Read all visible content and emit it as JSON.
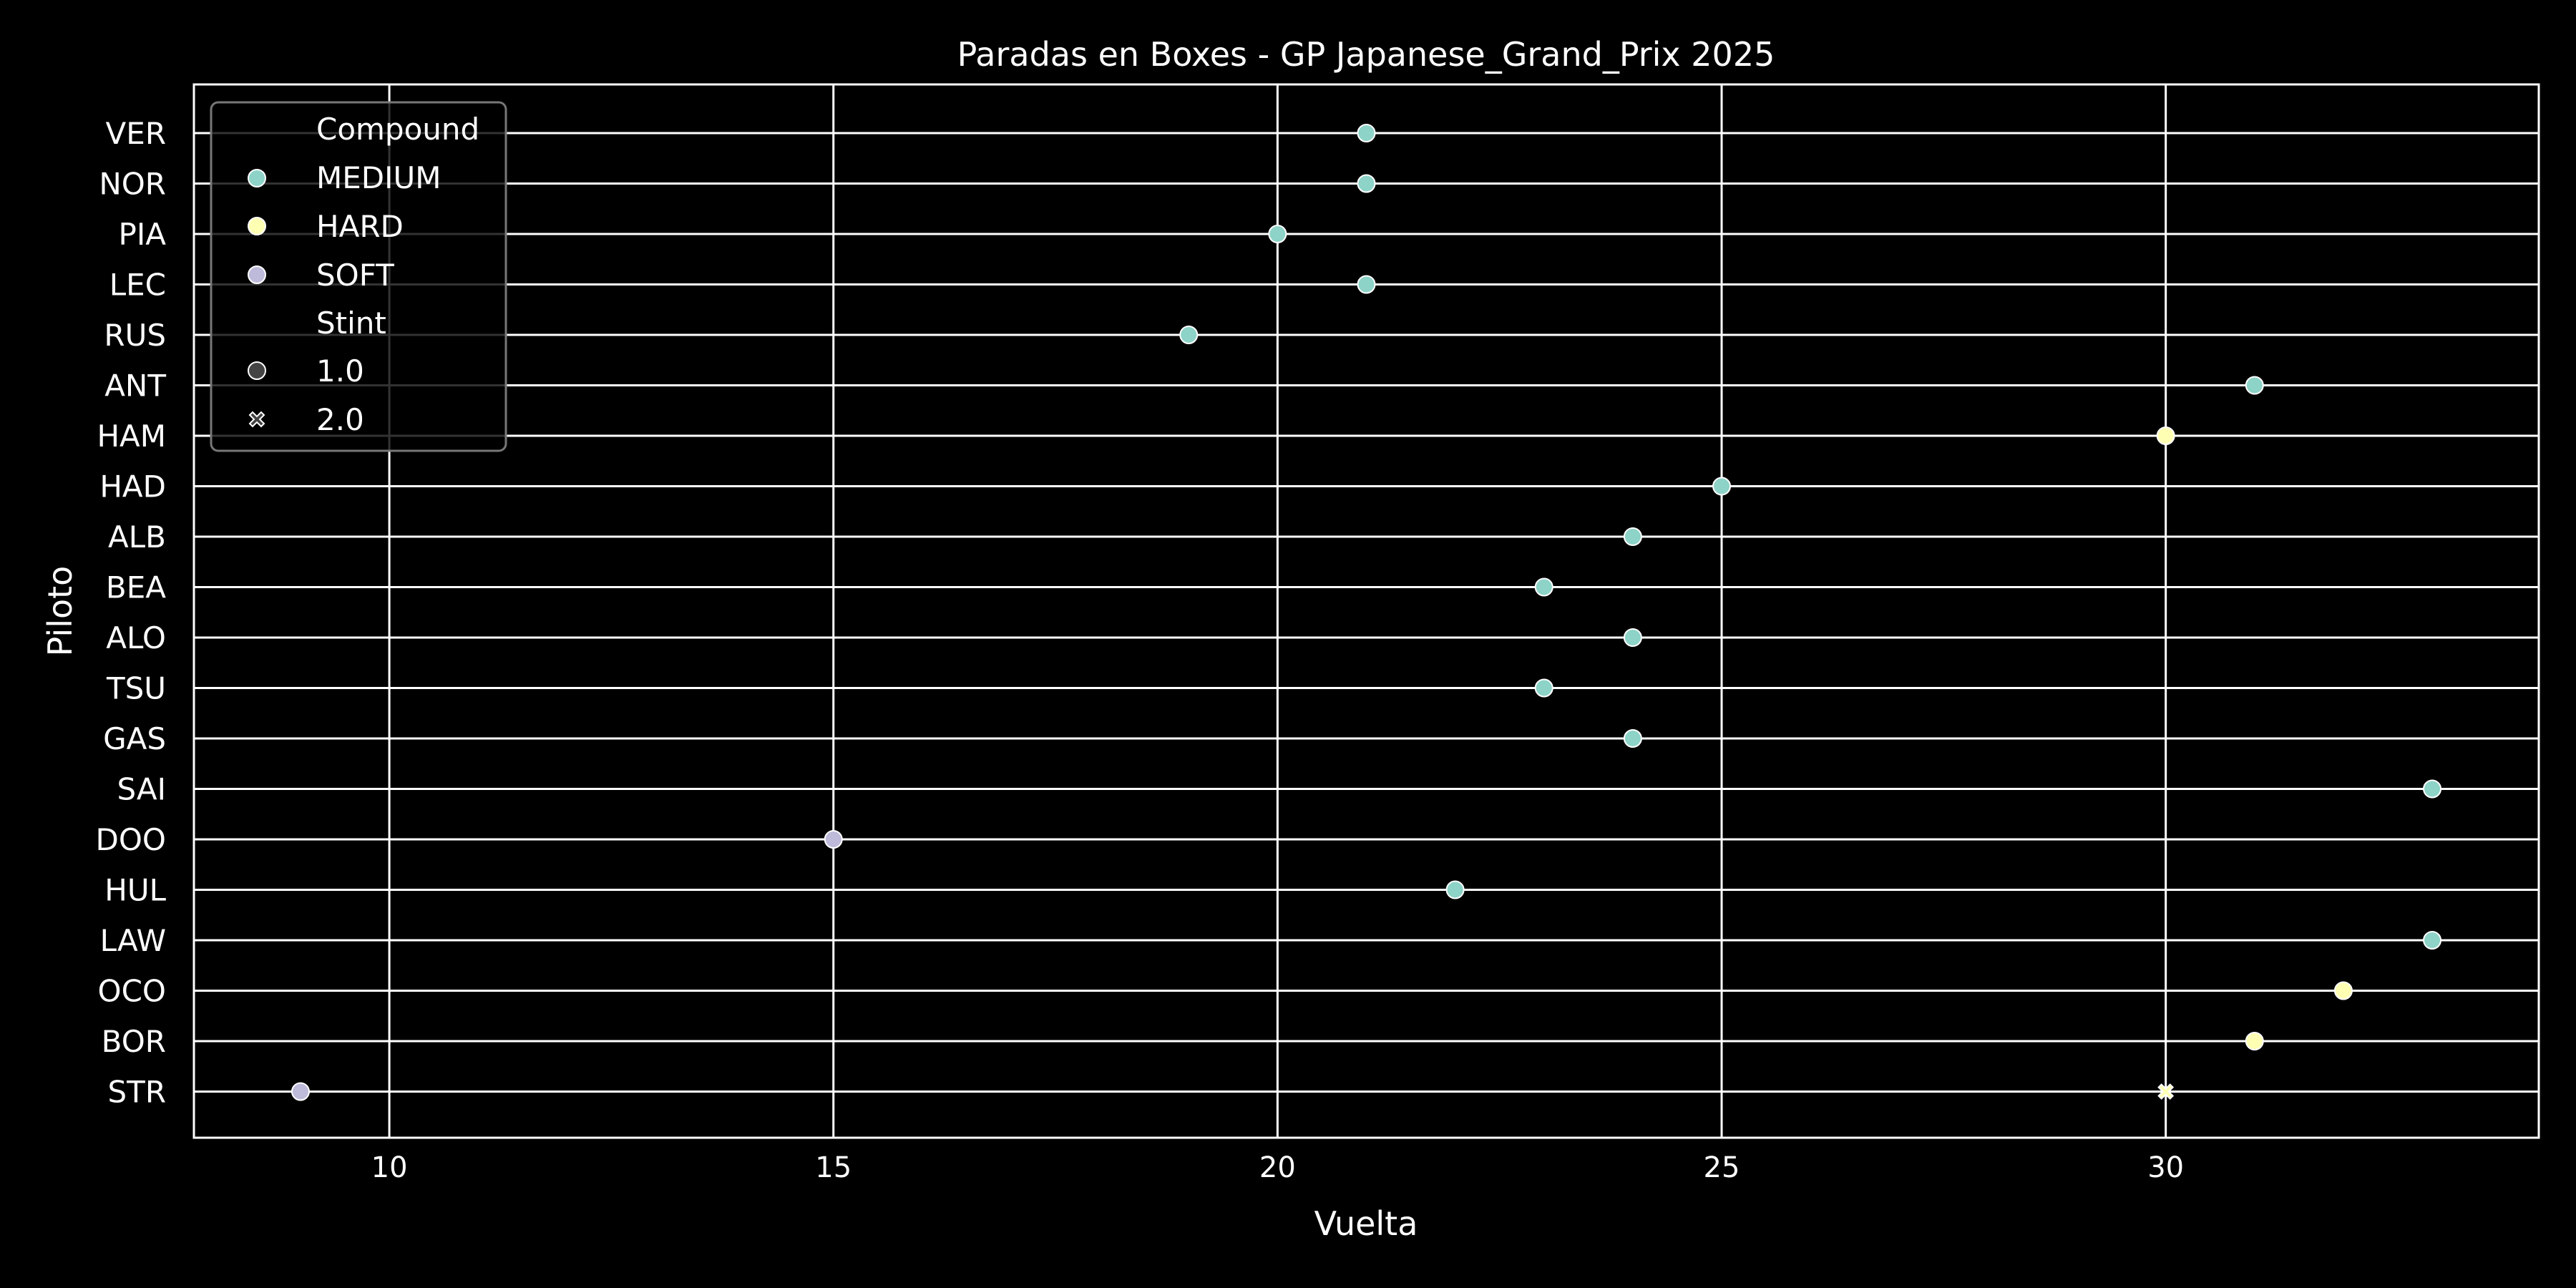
{
  "chart_data": {
    "type": "scatter",
    "title": "Paradas en Boxes - GP Japanese_Grand_Prix 2025",
    "xlabel": "Vuelta",
    "ylabel": "Piloto",
    "xlim": [
      7.8,
      34.2
    ],
    "xticks": [
      10,
      15,
      20,
      25,
      30
    ],
    "categories": [
      "VER",
      "NOR",
      "PIA",
      "LEC",
      "RUS",
      "ANT",
      "HAM",
      "HAD",
      "ALB",
      "BEA",
      "ALO",
      "TSU",
      "GAS",
      "SAI",
      "DOO",
      "HUL",
      "LAW",
      "OCO",
      "BOR",
      "STR"
    ],
    "grid": true,
    "legend_position": "top-left",
    "colors": {
      "MEDIUM": "#8dd3c7",
      "HARD": "#ffffb3",
      "SOFT": "#bebada"
    },
    "legend": {
      "compound_title": "Compound",
      "compounds": [
        "MEDIUM",
        "HARD",
        "SOFT"
      ],
      "stint_title": "Stint",
      "stints": [
        "1.0",
        "2.0"
      ]
    },
    "points": [
      {
        "driver": "VER",
        "lap": 21,
        "compound": "MEDIUM",
        "stint": 1
      },
      {
        "driver": "NOR",
        "lap": 21,
        "compound": "MEDIUM",
        "stint": 1
      },
      {
        "driver": "PIA",
        "lap": 20,
        "compound": "MEDIUM",
        "stint": 1
      },
      {
        "driver": "LEC",
        "lap": 21,
        "compound": "MEDIUM",
        "stint": 1
      },
      {
        "driver": "RUS",
        "lap": 19,
        "compound": "MEDIUM",
        "stint": 1
      },
      {
        "driver": "ANT",
        "lap": 31,
        "compound": "MEDIUM",
        "stint": 1
      },
      {
        "driver": "HAM",
        "lap": 30,
        "compound": "HARD",
        "stint": 1
      },
      {
        "driver": "HAD",
        "lap": 25,
        "compound": "MEDIUM",
        "stint": 1
      },
      {
        "driver": "ALB",
        "lap": 24,
        "compound": "MEDIUM",
        "stint": 1
      },
      {
        "driver": "BEA",
        "lap": 23,
        "compound": "MEDIUM",
        "stint": 1
      },
      {
        "driver": "ALO",
        "lap": 24,
        "compound": "MEDIUM",
        "stint": 1
      },
      {
        "driver": "TSU",
        "lap": 23,
        "compound": "MEDIUM",
        "stint": 1
      },
      {
        "driver": "GAS",
        "lap": 24,
        "compound": "MEDIUM",
        "stint": 1
      },
      {
        "driver": "SAI",
        "lap": 33,
        "compound": "MEDIUM",
        "stint": 1
      },
      {
        "driver": "DOO",
        "lap": 15,
        "compound": "SOFT",
        "stint": 1
      },
      {
        "driver": "HUL",
        "lap": 22,
        "compound": "MEDIUM",
        "stint": 1
      },
      {
        "driver": "LAW",
        "lap": 33,
        "compound": "MEDIUM",
        "stint": 1
      },
      {
        "driver": "OCO",
        "lap": 32,
        "compound": "HARD",
        "stint": 1
      },
      {
        "driver": "BOR",
        "lap": 31,
        "compound": "HARD",
        "stint": 1
      },
      {
        "driver": "STR",
        "lap": 9,
        "compound": "SOFT",
        "stint": 1
      },
      {
        "driver": "STR",
        "lap": 30,
        "compound": "HARD",
        "stint": 2
      }
    ]
  }
}
